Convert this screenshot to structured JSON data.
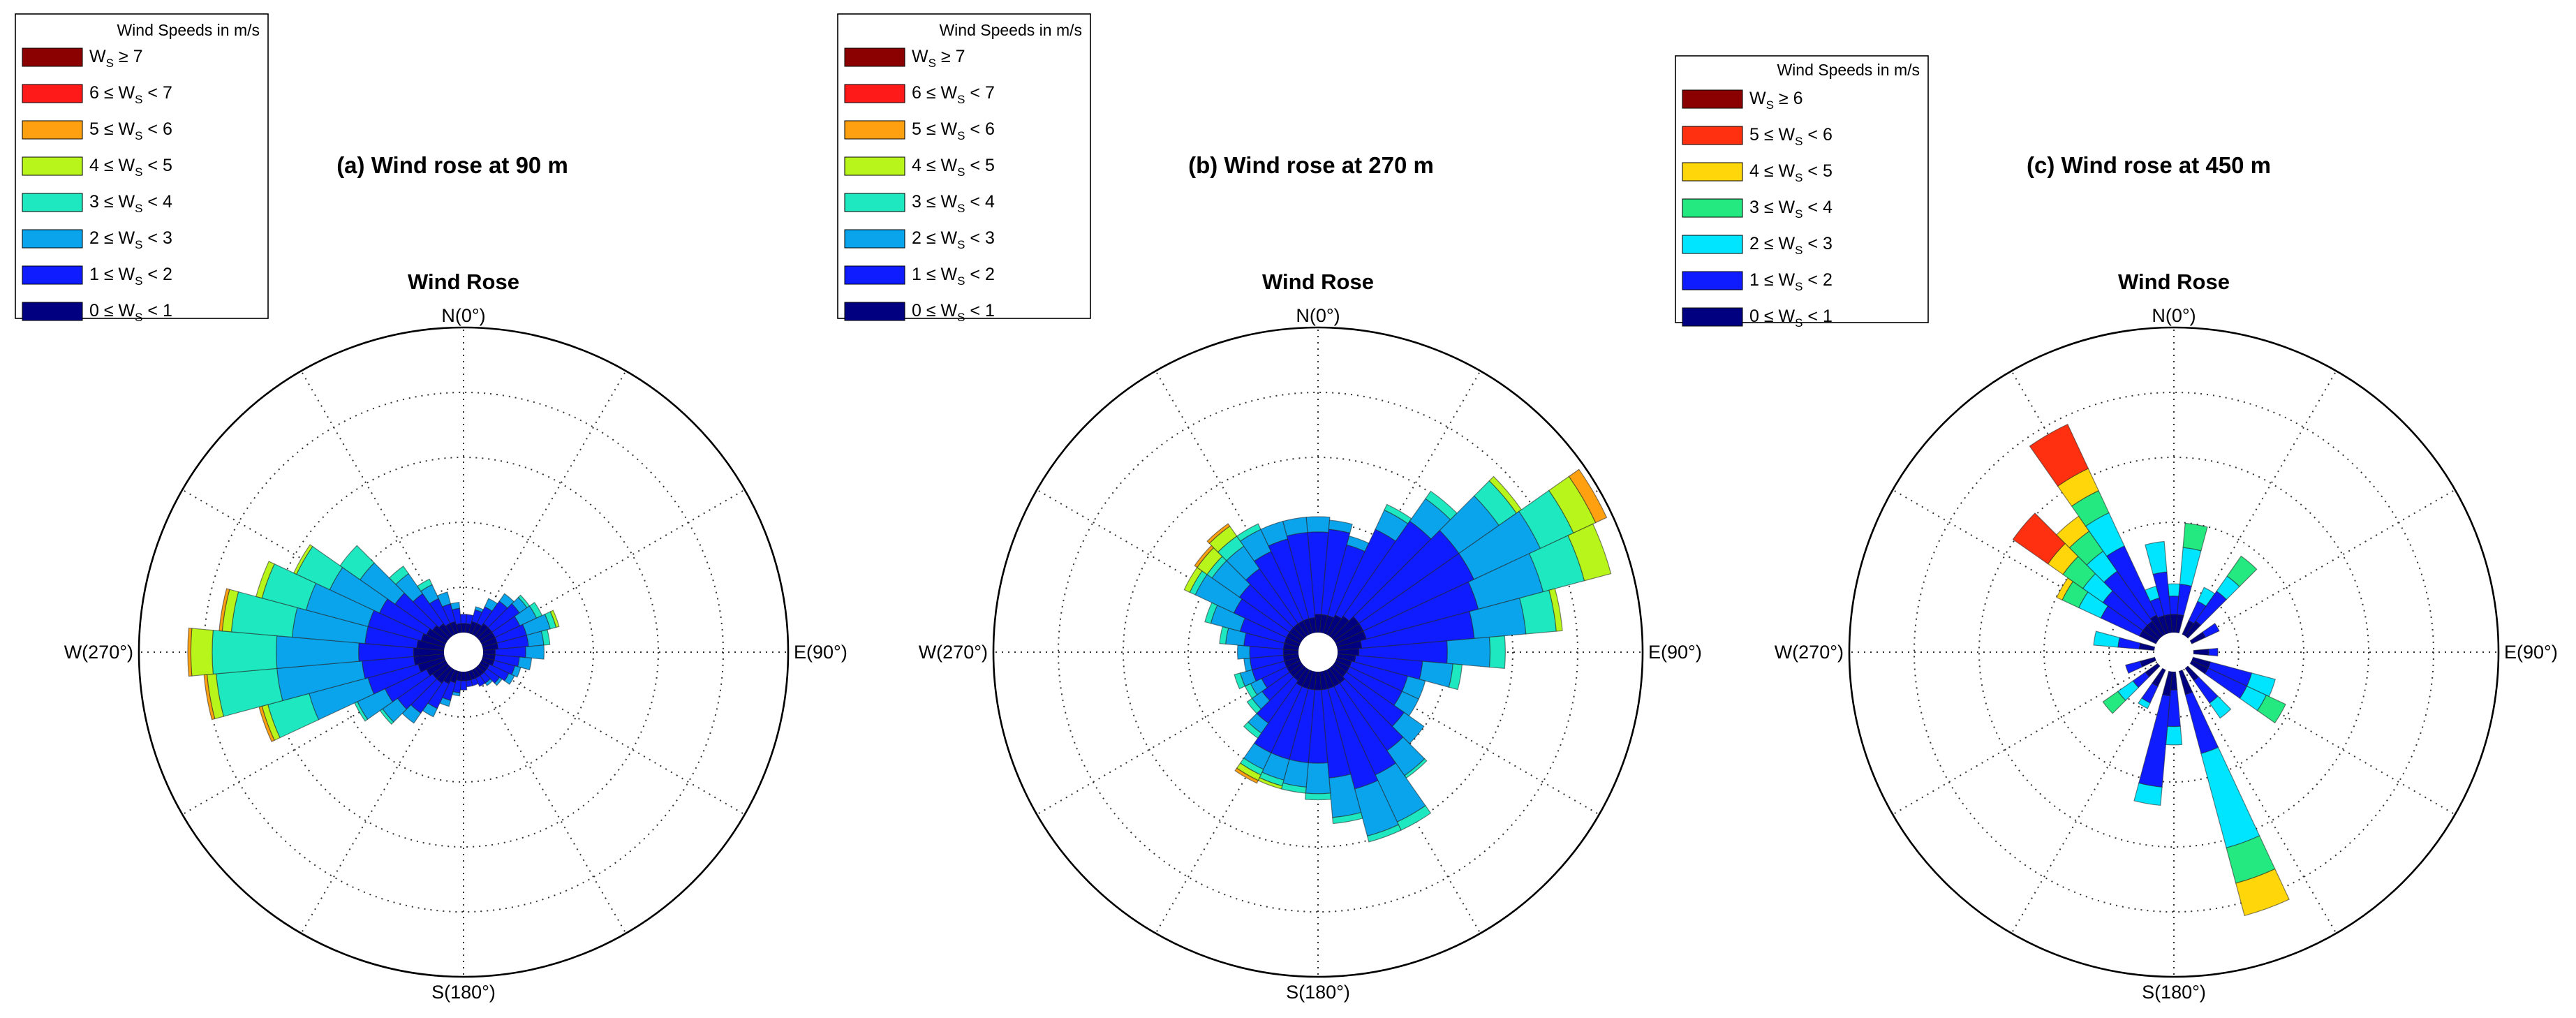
{
  "colors": {
    "dark_navy": "#000080",
    "blue": "#0f1cff",
    "light_blue": "#0aa4ec",
    "cyan": "#00e5ff",
    "teal": "#1ee8c0",
    "green": "#24e880",
    "lime": "#b8f51a",
    "yellow": "#ffd60a",
    "orange": "#ffa010",
    "red": "#ff1a1a",
    "red_orange": "#ff3010",
    "dark_red": "#8b0000"
  },
  "chart_data": [
    {
      "type": "wind-rose",
      "title": "(a) Wind rose at 90 m",
      "subtitle": "Wind Rose",
      "direction_labels": {
        "n": "N(0°)",
        "e": "E(90°)",
        "s": "S(180°)",
        "w": "W(270°)"
      },
      "radial_rings": 5,
      "radial_scale": "unlabeled, relative frequency; outer ring = 1.0",
      "grid": true,
      "legend": {
        "title": "Wind Speeds in m/s",
        "position": "top-left",
        "items": [
          {
            "main": "W",
            "sub": "S",
            "rest": " ≥ 7",
            "color": "#8b0000"
          },
          {
            "main": "6 ≤ W",
            "sub": "S",
            "rest": " < 7",
            "color": "#ff1a1a"
          },
          {
            "main": "5 ≤ W",
            "sub": "S",
            "rest": " < 6",
            "color": "#ffa010"
          },
          {
            "main": "4 ≤ W",
            "sub": "S",
            "rest": " < 5",
            "color": "#b8f51a"
          },
          {
            "main": "3 ≤ W",
            "sub": "S",
            "rest": " < 4",
            "color": "#1ee8c0"
          },
          {
            "main": "2 ≤ W",
            "sub": "S",
            "rest": " < 3",
            "color": "#0aa4ec"
          },
          {
            "main": "1 ≤ W",
            "sub": "S",
            "rest": " < 2",
            "color": "#0f1cff"
          },
          {
            "main": "0 ≤ W",
            "sub": "S",
            "rest": " < 1",
            "color": "#000080"
          }
        ]
      },
      "sector_width_deg": 10,
      "bin_colors": [
        "#000080",
        "#0f1cff",
        "#0aa4ec",
        "#1ee8c0",
        "#b8f51a",
        "#ffa010",
        "#ff1a1a",
        "#8b0000"
      ],
      "sectors": [
        {
          "dir": 0,
          "cum": [
            0.03,
            0.06
          ]
        },
        {
          "dir": 10,
          "cum": [
            0.03,
            0.06
          ]
        },
        {
          "dir": 20,
          "cum": [
            0.04,
            0.08,
            0.09
          ]
        },
        {
          "dir": 30,
          "cum": [
            0.04,
            0.1,
            0.13
          ]
        },
        {
          "dir": 40,
          "cum": [
            0.05,
            0.14,
            0.17
          ]
        },
        {
          "dir": 50,
          "cum": [
            0.05,
            0.16,
            0.19,
            0.2
          ]
        },
        {
          "dir": 60,
          "cum": [
            0.05,
            0.14,
            0.2,
            0.22
          ]
        },
        {
          "dir": 70,
          "cum": [
            0.05,
            0.15,
            0.23,
            0.25,
            0.26
          ]
        },
        {
          "dir": 80,
          "cum": [
            0.05,
            0.15,
            0.2,
            0.22
          ]
        },
        {
          "dir": 90,
          "cum": [
            0.04,
            0.14,
            0.2
          ]
        },
        {
          "dir": 100,
          "cum": [
            0.04,
            0.12,
            0.16
          ]
        },
        {
          "dir": 110,
          "cum": [
            0.04,
            0.11,
            0.13
          ]
        },
        {
          "dir": 120,
          "cum": [
            0.03,
            0.1,
            0.12
          ]
        },
        {
          "dir": 130,
          "cum": [
            0.03,
            0.08,
            0.09
          ]
        },
        {
          "dir": 140,
          "cum": [
            0.03,
            0.06,
            0.07
          ]
        },
        {
          "dir": 150,
          "cum": [
            0.03,
            0.06
          ]
        },
        {
          "dir": 160,
          "cum": [
            0.03,
            0.05
          ]
        },
        {
          "dir": 170,
          "cum": [
            0.03,
            0.05
          ]
        },
        {
          "dir": 180,
          "cum": [
            0.03,
            0.06
          ]
        },
        {
          "dir": 190,
          "cum": [
            0.03,
            0.07,
            0.08
          ]
        },
        {
          "dir": 200,
          "cum": [
            0.04,
            0.1,
            0.12
          ]
        },
        {
          "dir": 210,
          "cum": [
            0.05,
            0.14,
            0.17
          ]
        },
        {
          "dir": 220,
          "cum": [
            0.06,
            0.18,
            0.22
          ]
        },
        {
          "dir": 230,
          "cum": [
            0.06,
            0.2,
            0.26,
            0.27
          ]
        },
        {
          "dir": 240,
          "cum": [
            0.07,
            0.22,
            0.32,
            0.33
          ]
        },
        {
          "dir": 250,
          "cum": [
            0.09,
            0.26,
            0.46,
            0.6,
            0.62,
            0.63
          ]
        },
        {
          "dir": 260,
          "cum": [
            0.1,
            0.27,
            0.55,
            0.75,
            0.78,
            0.79
          ]
        },
        {
          "dir": 270,
          "cum": [
            0.1,
            0.28,
            0.55,
            0.76,
            0.83,
            0.84
          ]
        },
        {
          "dir": 280,
          "cum": [
            0.09,
            0.26,
            0.5,
            0.7,
            0.73,
            0.74
          ]
        },
        {
          "dir": 290,
          "cum": [
            0.08,
            0.26,
            0.47,
            0.62,
            0.64
          ]
        },
        {
          "dir": 300,
          "cum": [
            0.07,
            0.24,
            0.42,
            0.54,
            0.55
          ]
        },
        {
          "dir": 310,
          "cum": [
            0.06,
            0.21,
            0.35,
            0.43
          ]
        },
        {
          "dir": 320,
          "cum": [
            0.05,
            0.17,
            0.25,
            0.28
          ]
        },
        {
          "dir": 330,
          "cum": [
            0.04,
            0.13,
            0.18,
            0.2
          ]
        },
        {
          "dir": 340,
          "cum": [
            0.04,
            0.1,
            0.14
          ]
        },
        {
          "dir": 350,
          "cum": [
            0.03,
            0.08,
            0.1
          ]
        }
      ]
    },
    {
      "type": "wind-rose",
      "title": "(b) Wind rose at 270 m",
      "subtitle": "Wind Rose",
      "direction_labels": {
        "n": "N(0°)",
        "e": "E(90°)",
        "s": "S(180°)",
        "w": "W(270°)"
      },
      "radial_rings": 5,
      "radial_scale": "unlabeled, relative frequency; outer ring = 1.0",
      "grid": true,
      "legend": {
        "title": "Wind Speeds in m/s",
        "position": "top-left",
        "items": [
          {
            "main": "W",
            "sub": "S",
            "rest": " ≥ 7",
            "color": "#8b0000"
          },
          {
            "main": "6 ≤ W",
            "sub": "S",
            "rest": " < 7",
            "color": "#ff1a1a"
          },
          {
            "main": "5 ≤ W",
            "sub": "S",
            "rest": " < 6",
            "color": "#ffa010"
          },
          {
            "main": "4 ≤ W",
            "sub": "S",
            "rest": " < 5",
            "color": "#b8f51a"
          },
          {
            "main": "3 ≤ W",
            "sub": "S",
            "rest": " < 4",
            "color": "#1ee8c0"
          },
          {
            "main": "2 ≤ W",
            "sub": "S",
            "rest": " < 3",
            "color": "#0aa4ec"
          },
          {
            "main": "1 ≤ W",
            "sub": "S",
            "rest": " < 2",
            "color": "#0f1cff"
          },
          {
            "main": "0 ≤ W",
            "sub": "S",
            "rest": " < 1",
            "color": "#000080"
          }
        ]
      },
      "sector_width_deg": 10,
      "bin_colors": [
        "#000080",
        "#0f1cff",
        "#0aa4ec",
        "#1ee8c0",
        "#b8f51a",
        "#ffa010",
        "#ff1a1a",
        "#8b0000"
      ],
      "sectors": [
        {
          "dir": 0,
          "cum": [
            0.06,
            0.33,
            0.38
          ]
        },
        {
          "dir": 10,
          "cum": [
            0.06,
            0.34,
            0.37
          ]
        },
        {
          "dir": 20,
          "cum": [
            0.06,
            0.3,
            0.33
          ]
        },
        {
          "dir": 30,
          "cum": [
            0.07,
            0.38,
            0.45,
            0.47
          ]
        },
        {
          "dir": 40,
          "cum": [
            0.08,
            0.46,
            0.55,
            0.58
          ]
        },
        {
          "dir": 50,
          "cum": [
            0.1,
            0.5,
            0.66,
            0.73,
            0.75
          ]
        },
        {
          "dir": 60,
          "cum": [
            0.1,
            0.5,
            0.74,
            0.86,
            0.94,
            0.98
          ]
        },
        {
          "dir": 70,
          "cum": [
            0.1,
            0.48,
            0.7,
            0.84,
            0.93
          ]
        },
        {
          "dir": 80,
          "cum": [
            0.08,
            0.45,
            0.62,
            0.72,
            0.74
          ]
        },
        {
          "dir": 90,
          "cum": [
            0.07,
            0.36,
            0.5,
            0.55
          ]
        },
        {
          "dir": 100,
          "cum": [
            0.06,
            0.28,
            0.38,
            0.41
          ]
        },
        {
          "dir": 110,
          "cum": [
            0.05,
            0.24,
            0.3
          ]
        },
        {
          "dir": 120,
          "cum": [
            0.05,
            0.24,
            0.3
          ]
        },
        {
          "dir": 130,
          "cum": [
            0.05,
            0.28,
            0.36
          ]
        },
        {
          "dir": 140,
          "cum": [
            0.06,
            0.33,
            0.43,
            0.44
          ]
        },
        {
          "dir": 150,
          "cum": [
            0.06,
            0.38,
            0.55,
            0.58
          ]
        },
        {
          "dir": 160,
          "cum": [
            0.06,
            0.4,
            0.56,
            0.58
          ]
        },
        {
          "dir": 170,
          "cum": [
            0.06,
            0.35,
            0.48,
            0.5
          ]
        },
        {
          "dir": 180,
          "cum": [
            0.06,
            0.3,
            0.4,
            0.42
          ]
        },
        {
          "dir": 190,
          "cum": [
            0.06,
            0.3,
            0.38,
            0.4
          ]
        },
        {
          "dir": 200,
          "cum": [
            0.06,
            0.3,
            0.37,
            0.39,
            0.4
          ]
        },
        {
          "dir": 210,
          "cum": [
            0.06,
            0.3,
            0.36,
            0.38,
            0.4,
            0.41
          ]
        },
        {
          "dir": 220,
          "cum": [
            0.05,
            0.22,
            0.26,
            0.28
          ]
        },
        {
          "dir": 230,
          "cum": [
            0.05,
            0.16,
            0.2,
            0.22
          ]
        },
        {
          "dir": 240,
          "cum": [
            0.05,
            0.14,
            0.18,
            0.2
          ]
        },
        {
          "dir": 250,
          "cum": [
            0.05,
            0.16,
            0.2,
            0.22
          ]
        },
        {
          "dir": 260,
          "cum": [
            0.05,
            0.16,
            0.18
          ]
        },
        {
          "dir": 270,
          "cum": [
            0.05,
            0.16,
            0.2
          ]
        },
        {
          "dir": 280,
          "cum": [
            0.05,
            0.18,
            0.24,
            0.26
          ]
        },
        {
          "dir": 290,
          "cum": [
            0.05,
            0.2,
            0.3,
            0.32
          ]
        },
        {
          "dir": 300,
          "cum": [
            0.05,
            0.24,
            0.38,
            0.4,
            0.42
          ]
        },
        {
          "dir": 310,
          "cum": [
            0.05,
            0.25,
            0.36,
            0.38,
            0.42,
            0.43
          ]
        },
        {
          "dir": 320,
          "cum": [
            0.05,
            0.27,
            0.36,
            0.4,
            0.44,
            0.45
          ]
        },
        {
          "dir": 330,
          "cum": [
            0.05,
            0.3,
            0.38,
            0.4
          ]
        },
        {
          "dir": 340,
          "cum": [
            0.05,
            0.32,
            0.38
          ]
        },
        {
          "dir": 350,
          "cum": [
            0.05,
            0.33,
            0.38
          ]
        }
      ]
    },
    {
      "type": "wind-rose",
      "title": "(c) Wind rose at 450 m",
      "subtitle": "Wind Rose",
      "direction_labels": {
        "n": "N(0°)",
        "e": "E(90°)",
        "s": "S(180°)",
        "w": "W(270°)"
      },
      "radial_rings": 5,
      "radial_scale": "unlabeled, relative frequency; outer ring = 1.0",
      "grid": true,
      "legend": {
        "title": "Wind Speeds in m/s",
        "position": "top-left",
        "items": [
          {
            "main": "W",
            "sub": "S",
            "rest": " ≥ 6",
            "color": "#8b0000"
          },
          {
            "main": "5 ≤ W",
            "sub": "S",
            "rest": " < 6",
            "color": "#ff3010"
          },
          {
            "main": "4 ≤ W",
            "sub": "S",
            "rest": " < 5",
            "color": "#ffd60a"
          },
          {
            "main": "3 ≤ W",
            "sub": "S",
            "rest": " < 4",
            "color": "#24e880"
          },
          {
            "main": "2 ≤ W",
            "sub": "S",
            "rest": " < 3",
            "color": "#00e5ff"
          },
          {
            "main": "1 ≤ W",
            "sub": "S",
            "rest": " < 2",
            "color": "#0f1cff"
          },
          {
            "main": "0 ≤ W",
            "sub": "S",
            "rest": " < 1",
            "color": "#000080"
          }
        ]
      },
      "sector_width_deg": 10,
      "bin_colors": [
        "#000080",
        "#0f1cff",
        "#00e5ff",
        "#24e880",
        "#ffd60a",
        "#ff3010",
        "#8b0000"
      ],
      "sectors": [
        {
          "dir": 0,
          "cum": [
            0.06,
            0.12,
            0.16
          ]
        },
        {
          "dir": 10,
          "cum": [
            0.06,
            0.16,
            0.28,
            0.36
          ]
        },
        {
          "dir": 30,
          "cum": [
            0.05,
            0.12,
            0.17
          ]
        },
        {
          "dir": 40,
          "cum": [
            0.06,
            0.18,
            0.24,
            0.32
          ]
        },
        {
          "dir": 60,
          "cum": [
            0.05,
            0.1
          ]
        },
        {
          "dir": 90,
          "cum": [
            0.05,
            0.08
          ]
        },
        {
          "dir": 110,
          "cum": [
            0.06,
            0.2,
            0.28
          ]
        },
        {
          "dir": 120,
          "cum": [
            0.06,
            0.2,
            0.27,
            0.34
          ]
        },
        {
          "dir": 140,
          "cum": [
            0.05,
            0.14,
            0.2
          ]
        },
        {
          "dir": 160,
          "cum": [
            0.08,
            0.28,
            0.6,
            0.72,
            0.83
          ]
        },
        {
          "dir": 180,
          "cum": [
            0.06,
            0.18,
            0.24
          ]
        },
        {
          "dir": 190,
          "cum": [
            0.08,
            0.38,
            0.44
          ]
        },
        {
          "dir": 210,
          "cum": [
            0.06,
            0.12,
            0.14
          ]
        },
        {
          "dir": 230,
          "cum": [
            0.05,
            0.1,
            0.16,
            0.22
          ]
        },
        {
          "dir": 250,
          "cum": [
            0.05,
            0.1
          ]
        },
        {
          "dir": 280,
          "cum": [
            0.05,
            0.12,
            0.2
          ]
        },
        {
          "dir": 300,
          "cum": [
            0.06,
            0.2,
            0.28,
            0.34,
            0.36
          ]
        },
        {
          "dir": 310,
          "cum": [
            0.06,
            0.22,
            0.3,
            0.38,
            0.44,
            0.58
          ]
        },
        {
          "dir": 320,
          "cum": [
            0.06,
            0.26,
            0.34,
            0.42,
            0.48
          ]
        },
        {
          "dir": 330,
          "cum": [
            0.07,
            0.32,
            0.44,
            0.52,
            0.6,
            0.76
          ]
        },
        {
          "dir": 340,
          "cum": [
            0.06,
            0.12,
            0.16
          ]
        },
        {
          "dir": 350,
          "cum": [
            0.06,
            0.2,
            0.3
          ]
        }
      ]
    }
  ]
}
